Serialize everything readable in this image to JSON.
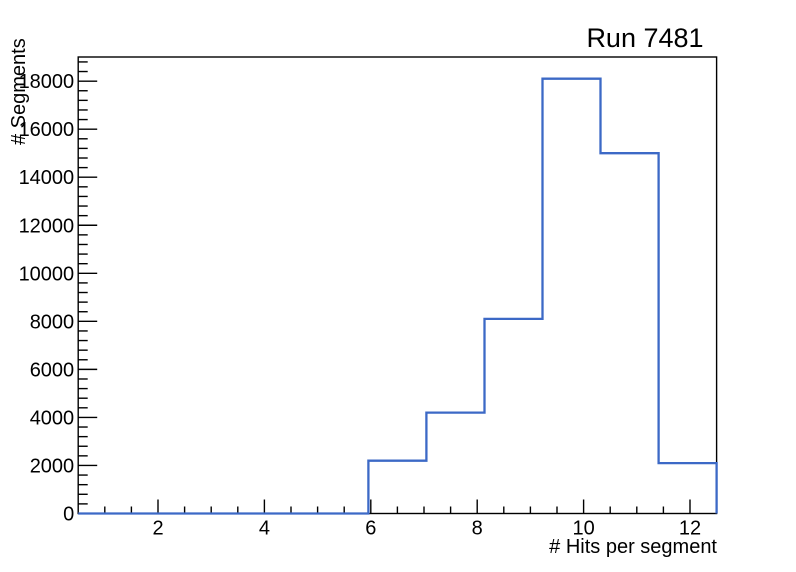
{
  "window": {
    "background": "#ffffff"
  },
  "chart_data": {
    "type": "histogram",
    "style": "step-outline",
    "title": "Run 7481",
    "xlabel": "# Hits per segment",
    "ylabel": "# Segments",
    "xlim": [
      0.5,
      12.5
    ],
    "ylim": [
      0,
      19005
    ],
    "n_bins": 11,
    "bin_edges": [
      0.5,
      1.5909,
      2.6818,
      3.7727,
      4.8636,
      5.9545,
      7.0455,
      8.1364,
      9.2273,
      10.3182,
      11.4091,
      12.5
    ],
    "values": [
      0,
      0,
      0,
      0,
      0,
      2200,
      4200,
      8100,
      18100,
      15000,
      2100
    ],
    "x_axis": {
      "major_ticks": [
        2,
        4,
        6,
        8,
        10,
        12
      ],
      "major_tick_labels": [
        "2",
        "4",
        "6",
        "8",
        "10",
        "12"
      ],
      "minor_tick_step": 0.5
    },
    "y_axis": {
      "major_ticks": [
        0,
        2000,
        4000,
        6000,
        8000,
        10000,
        12000,
        14000,
        16000,
        18000
      ],
      "major_tick_labels": [
        "0",
        "2000",
        "4000",
        "6000",
        "8000",
        "10000",
        "12000",
        "14000",
        "16000",
        "18000"
      ],
      "minor_tick_step": 400
    },
    "grid": false,
    "legend": null,
    "line_color": "#3c69c6",
    "axis_color": "#000000",
    "text_color": "#000000"
  }
}
